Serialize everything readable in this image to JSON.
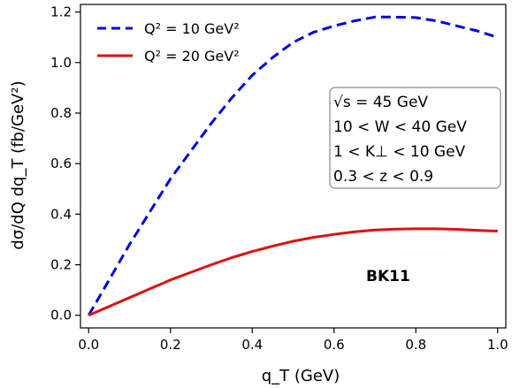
{
  "chart_data": {
    "type": "line",
    "xlabel": "q_T (GeV)",
    "ylabel": "dσ/dQ dq_T (fb/GeV²)",
    "xlim": [
      -0.02,
      1.02
    ],
    "ylim": [
      -0.05,
      1.23
    ],
    "xticks": [
      0.0,
      0.2,
      0.4,
      0.6,
      0.8,
      1.0
    ],
    "xtick_labels": [
      "0.0",
      "0.2",
      "0.4",
      "0.6",
      "0.8",
      "1.0"
    ],
    "yticks": [
      0.0,
      0.2,
      0.4,
      0.6,
      0.8,
      1.0,
      1.2
    ],
    "ytick_labels": [
      "0.0",
      "0.2",
      "0.4",
      "0.6",
      "0.8",
      "1.0",
      "1.2"
    ],
    "grid": false,
    "legend_position": "top-left",
    "series": [
      {
        "name": "Q² = 10 GeV²",
        "color": "#0000dd",
        "style": "dashed",
        "x": [
          0.0,
          0.05,
          0.1,
          0.15,
          0.2,
          0.25,
          0.3,
          0.35,
          0.4,
          0.45,
          0.5,
          0.55,
          0.6,
          0.65,
          0.7,
          0.75,
          0.8,
          0.85,
          0.9,
          0.95,
          1.0
        ],
        "y": [
          0.0,
          0.14,
          0.28,
          0.41,
          0.54,
          0.65,
          0.76,
          0.86,
          0.95,
          1.02,
          1.08,
          1.12,
          1.145,
          1.165,
          1.18,
          1.18,
          1.178,
          1.165,
          1.145,
          1.125,
          1.1
        ]
      },
      {
        "name": "Q² = 20 GeV²",
        "color": "#dd1111",
        "style": "solid",
        "x": [
          0.0,
          0.05,
          0.1,
          0.15,
          0.2,
          0.25,
          0.3,
          0.35,
          0.4,
          0.45,
          0.5,
          0.55,
          0.6,
          0.65,
          0.7,
          0.75,
          0.8,
          0.85,
          0.9,
          0.95,
          1.0
        ],
        "y": [
          0.0,
          0.035,
          0.07,
          0.105,
          0.14,
          0.17,
          0.2,
          0.228,
          0.252,
          0.274,
          0.293,
          0.308,
          0.32,
          0.33,
          0.337,
          0.341,
          0.342,
          0.342,
          0.34,
          0.336,
          0.333
        ]
      }
    ],
    "annotations": {
      "info_lines": [
        "√s = 45 GeV",
        "10 < W < 40 GeV",
        "1 < K⊥ < 10 GeV",
        "0.3 < z < 0.9"
      ],
      "tag": "BK11"
    }
  }
}
